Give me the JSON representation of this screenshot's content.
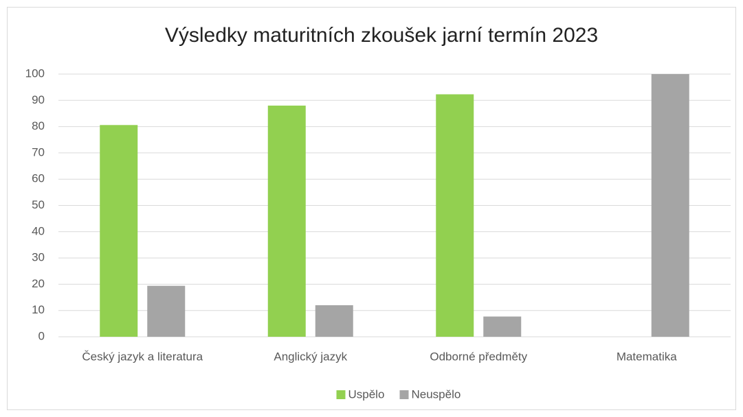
{
  "chart_data": {
    "type": "bar",
    "title": "Výsledky maturitních zkoušek jarní termín 2023",
    "categories": [
      "Český jazyk a literatura",
      "Anglický jazyk",
      "Odborné předměty",
      "Matematika"
    ],
    "series": [
      {
        "name": "Uspělo",
        "color": "#92d050",
        "values": [
          80.6,
          88,
          92.3,
          0
        ]
      },
      {
        "name": "Neuspělo",
        "color": "#a5a5a5",
        "values": [
          19.4,
          12,
          7.7,
          100
        ]
      }
    ],
    "ylim": [
      0,
      100
    ],
    "yticks": [
      0,
      10,
      20,
      30,
      40,
      50,
      60,
      70,
      80,
      90,
      100
    ],
    "grid": true,
    "legend": "bottom"
  }
}
